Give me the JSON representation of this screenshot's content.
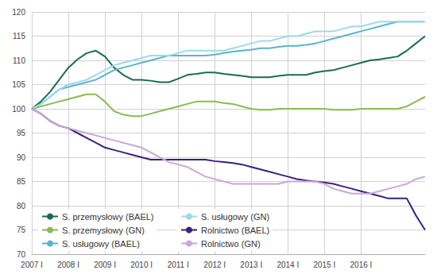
{
  "chart_data": {
    "type": "line",
    "categories": [
      "2007 I",
      null,
      null,
      null,
      "2008 I",
      null,
      null,
      null,
      "2009 I",
      null,
      null,
      null,
      "2010 I",
      null,
      null,
      null,
      "2011 I",
      null,
      null,
      null,
      "2012 I",
      null,
      null,
      null,
      "2013 I",
      null,
      null,
      null,
      "2014 I",
      null,
      null,
      null,
      "2015 I",
      null,
      null,
      null,
      "2016 I",
      null,
      null,
      null,
      null,
      null,
      null,
      null
    ],
    "series": [
      {
        "name": "S. przemysłowy (BAEL)",
        "color": "#1a6b52",
        "values": [
          100,
          101.5,
          103.5,
          106,
          108.5,
          110.2,
          111.5,
          112,
          110.8,
          108.5,
          107,
          106,
          106,
          105.8,
          105.5,
          105.5,
          106.2,
          107,
          107.2,
          107.5,
          107.5,
          107.2,
          107,
          106.8,
          106.5,
          106.5,
          106.5,
          106.8,
          107,
          107,
          107,
          107.5,
          107.8,
          108,
          108.5,
          109,
          109.5,
          110,
          110.2,
          110.5,
          110.8,
          112,
          113.5,
          115
        ]
      },
      {
        "name": "S. przemysłowy (GN)",
        "color": "#88bb55",
        "values": [
          100,
          100.5,
          101,
          101.5,
          102,
          102.5,
          103,
          103,
          101.5,
          99.5,
          98.8,
          98.5,
          98.5,
          99,
          99.5,
          100,
          100.5,
          101,
          101.5,
          101.5,
          101.5,
          101.2,
          101,
          100.5,
          100,
          99.8,
          99.8,
          100,
          100,
          100,
          100,
          100,
          100,
          99.8,
          99.8,
          99.8,
          100,
          100,
          100,
          100,
          100,
          100.5,
          101.5,
          102.5
        ]
      },
      {
        "name": "S. usługowy (BAEL)",
        "color": "#5ab4cc",
        "values": [
          100,
          101,
          102.5,
          104,
          104.5,
          105,
          105.5,
          106,
          107,
          108,
          108.5,
          109,
          109.5,
          110,
          110.5,
          111,
          111,
          111,
          111,
          111,
          111.2,
          111.5,
          111.8,
          112,
          112.2,
          112.5,
          112.5,
          112.8,
          113,
          113,
          113.2,
          113.5,
          114,
          114.5,
          115,
          115.5,
          116,
          116.5,
          117,
          117.5,
          118,
          118,
          118,
          118
        ]
      },
      {
        "name": "S. usługowy (GN)",
        "color": "#a0d8e8",
        "values": [
          100,
          101,
          102.5,
          104,
          105,
          105.5,
          106,
          107,
          108,
          109,
          109.5,
          110,
          110.5,
          111,
          111,
          111,
          111.5,
          112,
          112,
          112,
          112,
          112,
          112.5,
          113,
          113.5,
          114,
          114,
          114.5,
          115,
          115,
          115.5,
          116,
          116,
          116,
          116.5,
          117,
          117,
          117.5,
          118,
          118,
          118,
          118,
          118,
          118
        ]
      },
      {
        "name": "Rolnictwo (BAEL)",
        "color": "#38207a",
        "values": [
          100,
          99,
          97.5,
          96.5,
          96,
          95,
          94,
          93,
          92,
          91.5,
          91,
          90.5,
          90,
          89.5,
          89.5,
          89.5,
          89.5,
          89.5,
          89.5,
          89.5,
          89.2,
          89,
          88.8,
          88.5,
          88,
          87.5,
          87,
          86.5,
          86,
          85.5,
          85.2,
          85,
          84.8,
          84.5,
          84,
          83.5,
          83,
          82.5,
          82,
          81.5,
          81.5,
          81.5,
          78,
          75
        ]
      },
      {
        "name": "Rolnictwo (GN)",
        "color": "#c8a8d8",
        "values": [
          100,
          99,
          97.5,
          96.5,
          96,
          95.5,
          95,
          94.5,
          94,
          93.5,
          93,
          92.5,
          92,
          91,
          90,
          89,
          88.5,
          88,
          87,
          86,
          85.5,
          85,
          84.5,
          84.5,
          84.5,
          84.5,
          84.5,
          84.5,
          85,
          85,
          85,
          85,
          84.5,
          83.5,
          83,
          82.5,
          82.5,
          82.5,
          83,
          83.5,
          84,
          84.5,
          85.5,
          86
        ]
      }
    ],
    "ylim": [
      70,
      120
    ],
    "yticks": [
      70,
      75,
      80,
      85,
      90,
      95,
      100,
      105,
      110,
      115,
      120
    ],
    "grid": true,
    "legend": "lower left"
  }
}
